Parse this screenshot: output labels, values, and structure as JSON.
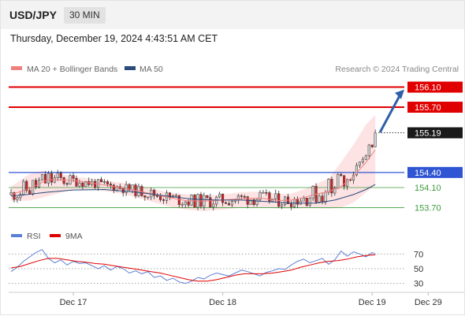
{
  "header": {
    "symbol": "USD/JPY",
    "interval": "30 MIN"
  },
  "timestamp": "Thursday, December 19, 2024 4:43:51 AM CET",
  "research_label": "Research © 2024 Trading Central",
  "colors": {
    "resistance": "#e00000",
    "support_main": "#2f55d4",
    "support_minor": "#3e9b3e",
    "ma20": "#f08080",
    "ma50": "#2c4a7c",
    "bands_fill": "#fde3e3",
    "candle_up": "#d8d8d8",
    "candle_down": "#d42020",
    "rsi": "#5b7fd6",
    "rsi_ma": "#e00000",
    "arrow": "#2f5fa8",
    "current_price_box": "#1a1a1a"
  },
  "chart_data": [
    {
      "type": "line",
      "subtype": "candlestick",
      "symbol": "USD/JPY",
      "interval": "30 MIN",
      "legend": [
        {
          "label": "MA 20 + Bollinger Bands",
          "color": "#f08080"
        },
        {
          "label": "MA 50",
          "color": "#2c4a7c"
        }
      ],
      "ylim": [
        153.55,
        156.25
      ],
      "x_ticks": [
        "Dec 17",
        "Dec 18",
        "Dec 19",
        "Dec 29"
      ],
      "x_tick_positions": [
        20,
        68,
        116,
        134
      ],
      "n_bars": 118,
      "series": [
        {
          "name": "MA 20 + Bollinger Bands",
          "kind": "ma20",
          "x": [
            0,
            6,
            12,
            20,
            28,
            36,
            44,
            50,
            56,
            62,
            68,
            74,
            80,
            86,
            90,
            94,
            98,
            102,
            106,
            110,
            114,
            117
          ],
          "values": [
            153.96,
            154.08,
            154.26,
            154.24,
            154.17,
            154.09,
            153.99,
            153.91,
            153.84,
            153.83,
            153.85,
            153.88,
            153.89,
            153.84,
            153.85,
            153.9,
            153.97,
            154.02,
            154.12,
            154.32,
            154.6,
            154.85
          ]
        },
        {
          "name": "MA 50",
          "kind": "ma50",
          "x": [
            0,
            5,
            12,
            20,
            30,
            40,
            50,
            58,
            66,
            74,
            82,
            90,
            98,
            104,
            110,
            114,
            117
          ],
          "values": [
            153.93,
            153.96,
            154.01,
            154.05,
            154.06,
            154.01,
            153.93,
            153.87,
            153.85,
            153.85,
            153.82,
            153.79,
            153.79,
            153.85,
            153.96,
            154.06,
            154.16
          ]
        },
        {
          "name": "Bollinger Upper",
          "kind": "bb_upper",
          "x": [
            0,
            6,
            10,
            20,
            28,
            36,
            44,
            50,
            56,
            62,
            68,
            74,
            80,
            86,
            90,
            94,
            98,
            102,
            106,
            110,
            114,
            117
          ],
          "values": [
            154.12,
            154.37,
            154.43,
            154.32,
            154.26,
            154.19,
            154.1,
            154.01,
            153.97,
            153.94,
            153.96,
            154.01,
            154.02,
            153.97,
            153.98,
            154.06,
            154.17,
            154.28,
            154.6,
            154.95,
            155.35,
            155.55
          ]
        },
        {
          "name": "Bollinger Lower",
          "kind": "bb_lower",
          "x": [
            0,
            6,
            10,
            20,
            28,
            36,
            44,
            50,
            56,
            62,
            68,
            74,
            80,
            86,
            90,
            94,
            98,
            102,
            106,
            110,
            114,
            117
          ],
          "values": [
            153.83,
            153.84,
            153.9,
            154.06,
            154.05,
            153.97,
            153.84,
            153.73,
            153.66,
            153.63,
            153.66,
            153.7,
            153.71,
            153.68,
            153.68,
            153.69,
            153.69,
            153.68,
            153.7,
            153.8,
            154.0,
            154.14
          ]
        }
      ],
      "levels": [
        {
          "label": "156.10",
          "value": 156.1,
          "kind": "resistance"
        },
        {
          "label": "155.70",
          "value": 155.7,
          "kind": "resistance"
        },
        {
          "label": "155.19",
          "value": 155.19,
          "kind": "current"
        },
        {
          "label": "154.40",
          "value": 154.4,
          "kind": "support_main"
        },
        {
          "label": "154.10",
          "value": 154.1,
          "kind": "support_minor"
        },
        {
          "label": "153.70",
          "value": 153.7,
          "kind": "support_minor"
        }
      ],
      "arrow": {
        "from_value": 155.2,
        "to_value": 156.05
      }
    },
    {
      "type": "line",
      "subtype": "oscillator",
      "legend": [
        {
          "label": "RSI",
          "color": "#5b7fd6"
        },
        {
          "label": "9MA",
          "color": "#e00000"
        }
      ],
      "ylim": [
        22,
        80
      ],
      "y_ticks": [
        {
          "label": "70",
          "value": 70
        },
        {
          "label": "50",
          "value": 50
        },
        {
          "label": "30",
          "value": 30
        }
      ],
      "series": [
        {
          "name": "RSI",
          "x": [
            0,
            2,
            4,
            6,
            8,
            10,
            12,
            14,
            16,
            18,
            20,
            22,
            24,
            26,
            28,
            30,
            32,
            34,
            36,
            38,
            40,
            42,
            44,
            46,
            48,
            50,
            52,
            54,
            56,
            58,
            60,
            62,
            64,
            66,
            68,
            70,
            72,
            74,
            76,
            78,
            80,
            82,
            84,
            86,
            88,
            90,
            92,
            94,
            96,
            98,
            100,
            102,
            104,
            106,
            108,
            110,
            112,
            114,
            116,
            117
          ],
          "values": [
            46,
            52,
            60,
            66,
            72,
            76,
            64,
            58,
            62,
            55,
            60,
            57,
            58,
            54,
            50,
            54,
            48,
            53,
            50,
            44,
            47,
            43,
            46,
            38,
            40,
            34,
            37,
            32,
            30,
            33,
            38,
            36,
            41,
            44,
            42,
            40,
            44,
            48,
            46,
            43,
            40,
            45,
            47,
            50,
            49,
            55,
            60,
            63,
            58,
            61,
            64,
            56,
            62,
            74,
            67,
            73,
            70,
            66,
            72,
            70
          ]
        },
        {
          "name": "9MA",
          "x": [
            0,
            3,
            6,
            9,
            12,
            15,
            18,
            21,
            24,
            27,
            30,
            33,
            36,
            39,
            42,
            45,
            48,
            51,
            54,
            57,
            60,
            63,
            66,
            69,
            72,
            75,
            78,
            81,
            84,
            87,
            90,
            93,
            96,
            99,
            102,
            105,
            108,
            111,
            114,
            117
          ],
          "values": [
            51,
            53,
            57,
            61,
            64,
            64,
            62,
            60,
            59,
            57,
            56,
            54,
            52,
            50,
            48,
            46,
            44,
            41,
            38,
            35,
            33,
            33,
            35,
            38,
            41,
            43,
            43,
            43,
            44,
            46,
            48,
            52,
            55,
            58,
            60,
            61,
            63,
            66,
            68,
            69
          ]
        }
      ]
    }
  ]
}
